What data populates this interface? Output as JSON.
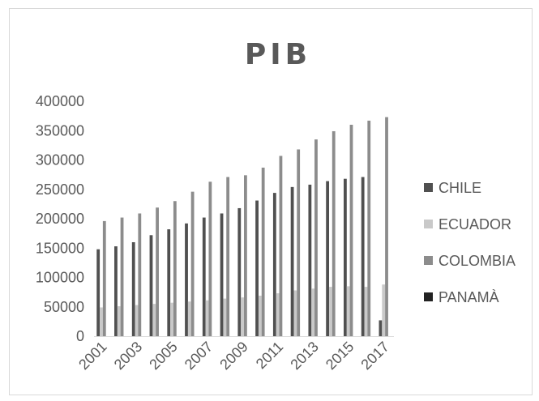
{
  "chart_data": {
    "type": "bar",
    "title": "PIB",
    "xlabel": "",
    "ylabel": "",
    "ylim": [
      0,
      400000
    ],
    "y_ticks": [
      0,
      50000,
      100000,
      150000,
      200000,
      250000,
      300000,
      350000,
      400000
    ],
    "y_tick_labels": [
      "0",
      "50000",
      "100000",
      "150000",
      "200000",
      "250000",
      "300000",
      "350000",
      "400000"
    ],
    "grid": false,
    "legend_position": "right",
    "categories": [
      "2001",
      "2002",
      "2003",
      "2004",
      "2005",
      "2006",
      "2007",
      "2008",
      "2009",
      "2010",
      "2011",
      "2012",
      "2013",
      "2014",
      "2015",
      "2016",
      "2017"
    ],
    "x_tick_labels": [
      "2001",
      "2003",
      "2005",
      "2007",
      "2009",
      "2011",
      "2013",
      "2015",
      "2017"
    ],
    "series": [
      {
        "name": "CHILE",
        "color": "#505050",
        "values": [
          148000,
          153000,
          160000,
          172000,
          182000,
          192000,
          202000,
          209000,
          218000,
          231000,
          244000,
          254000,
          258000,
          264000,
          268000,
          271000,
          27000
        ]
      },
      {
        "name": "ECUADOR",
        "color": "#c9c9c9",
        "values": [
          49000,
          51000,
          53000,
          55000,
          57000,
          59000,
          61000,
          64000,
          66000,
          69000,
          73000,
          78000,
          81000,
          84000,
          85000,
          84000,
          88000
        ]
      },
      {
        "name": "COLOMBIA",
        "color": "#8c8c8c",
        "values": [
          196000,
          202000,
          209000,
          219000,
          230000,
          246000,
          263000,
          271000,
          274000,
          287000,
          307000,
          318000,
          335000,
          349000,
          360000,
          367000,
          373000
        ]
      },
      {
        "name": "PANAMÀ",
        "color": "#222222",
        "values": [
          null,
          null,
          null,
          null,
          null,
          null,
          null,
          null,
          null,
          null,
          null,
          null,
          null,
          null,
          null,
          null,
          null
        ]
      }
    ]
  }
}
